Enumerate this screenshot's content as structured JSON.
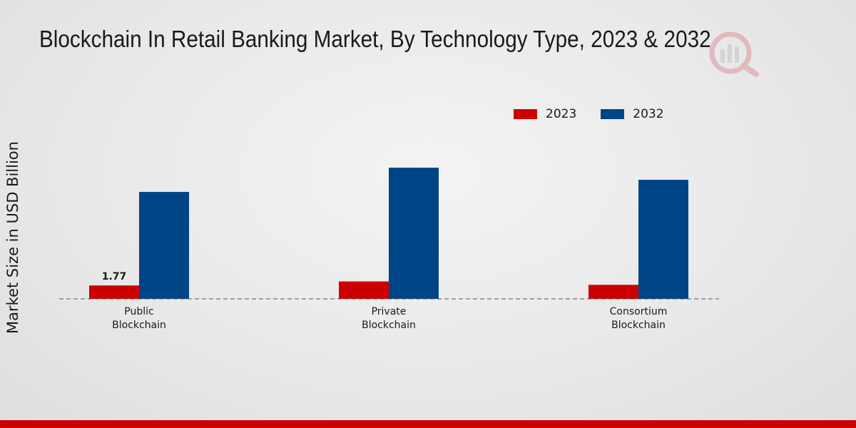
{
  "chart_data": {
    "type": "bar",
    "title": "Blockchain In Retail Banking Market, By Technology Type, 2023 & 2032",
    "xlabel": "",
    "ylabel": "Market Size in USD Billion",
    "categories": [
      [
        "Public",
        "Blockchain"
      ],
      [
        "Private",
        "Blockchain"
      ],
      [
        "Consortium",
        "Blockchain"
      ]
    ],
    "series": [
      {
        "name": "2023",
        "color": "#cc0000",
        "values": [
          1.77,
          2.3,
          1.85
        ]
      },
      {
        "name": "2032",
        "color": "#004488",
        "values": [
          14.1,
          17.3,
          15.7
        ]
      }
    ],
    "data_labels": [
      {
        "series": 0,
        "category": 0,
        "text": "1.77"
      }
    ],
    "ylim": [
      0,
      30
    ],
    "legend_position": "top-right",
    "baseline": "dashed"
  },
  "theme": {
    "bottom_bar_color": "#cc0000",
    "axis_color": "#555555"
  }
}
